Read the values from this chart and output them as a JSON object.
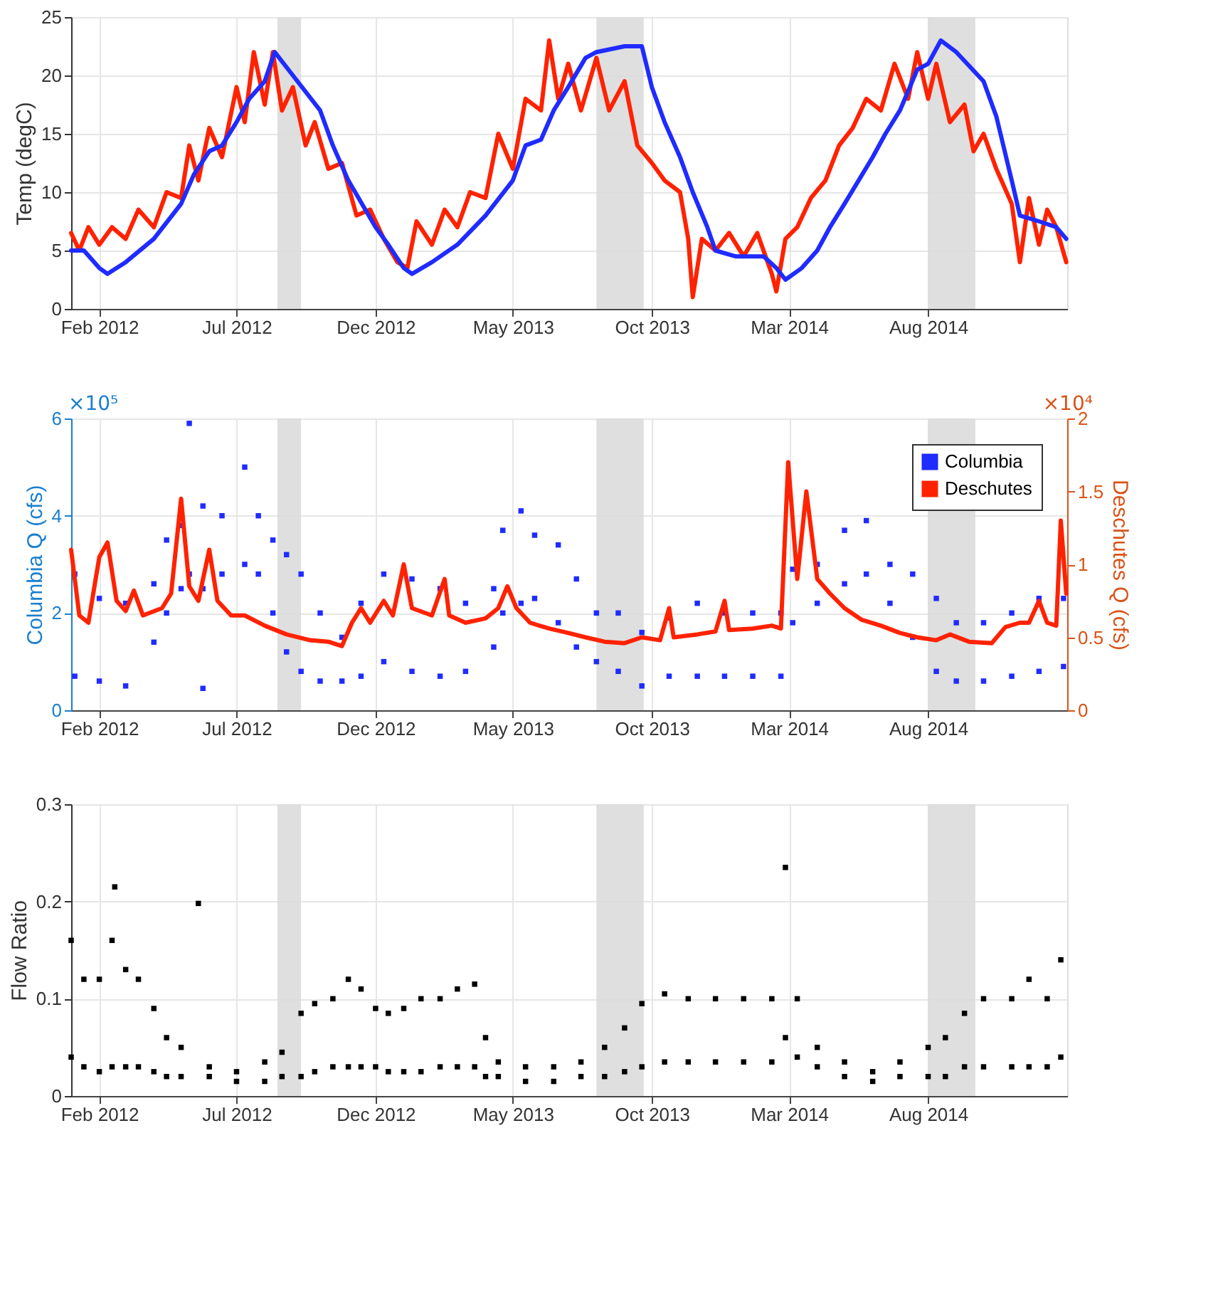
{
  "chart_data": [
    {
      "type": "line",
      "ylabel": "Temp (degC)",
      "xlim": [
        "2012-01-01",
        "2015-01-01"
      ],
      "ylim": [
        0,
        25
      ],
      "yticks": [
        0,
        5,
        10,
        15,
        20,
        25
      ],
      "xticks": [
        {
          "value": "2012-02-01",
          "label": "Feb 2012"
        },
        {
          "value": "2012-07-01",
          "label": "Jul 2012"
        },
        {
          "value": "2012-12-01",
          "label": "Dec 2012"
        },
        {
          "value": "2013-05-01",
          "label": "May 2013"
        },
        {
          "value": "2013-10-01",
          "label": "Oct 2013"
        },
        {
          "value": "2014-03-01",
          "label": "Mar 2014"
        },
        {
          "value": "2014-08-01",
          "label": "Aug 2014"
        }
      ],
      "grid": true,
      "bands": [
        {
          "axis": "x",
          "from": "2012-08-15",
          "to": "2012-09-10",
          "color": "#d9d9d9"
        },
        {
          "axis": "x",
          "from": "2013-08-01",
          "to": "2013-09-22",
          "color": "#d9d9d9"
        },
        {
          "axis": "x",
          "from": "2014-08-01",
          "to": "2014-09-22",
          "color": "#d9d9d9"
        }
      ],
      "series": [
        {
          "color": "#ff2200",
          "x": [
            "2012-01-01",
            "2012-01-10",
            "2012-01-20",
            "2012-02-01",
            "2012-02-15",
            "2012-03-01",
            "2012-03-15",
            "2012-04-01",
            "2012-04-15",
            "2012-05-01",
            "2012-05-10",
            "2012-05-20",
            "2012-06-01",
            "2012-06-15",
            "2012-07-01",
            "2012-07-10",
            "2012-07-20",
            "2012-08-01",
            "2012-08-10",
            "2012-08-20",
            "2012-09-01",
            "2012-09-15",
            "2012-09-25",
            "2012-10-10",
            "2012-10-25",
            "2012-11-10",
            "2012-11-25",
            "2012-12-10",
            "2012-12-25",
            "2013-01-05",
            "2013-01-15",
            "2013-02-01",
            "2013-02-15",
            "2013-03-01",
            "2013-03-15",
            "2013-04-01",
            "2013-04-15",
            "2013-05-01",
            "2013-05-15",
            "2013-06-01",
            "2013-06-10",
            "2013-06-20",
            "2013-07-01",
            "2013-07-15",
            "2013-08-01",
            "2013-08-15",
            "2013-09-01",
            "2013-09-15",
            "2013-10-01",
            "2013-10-15",
            "2013-11-01",
            "2013-11-10",
            "2013-11-15",
            "2013-11-25",
            "2013-12-10",
            "2013-12-25",
            "2014-01-10",
            "2014-01-25",
            "2014-02-10",
            "2014-02-15",
            "2014-02-25",
            "2014-03-10",
            "2014-03-25",
            "2014-04-10",
            "2014-04-25",
            "2014-05-10",
            "2014-05-25",
            "2014-06-10",
            "2014-06-25",
            "2014-07-10",
            "2014-07-20",
            "2014-08-01",
            "2014-08-10",
            "2014-08-25",
            "2014-09-10",
            "2014-09-20",
            "2014-10-01",
            "2014-10-15",
            "2014-11-01",
            "2014-11-10",
            "2014-11-20",
            "2014-12-01",
            "2014-12-10",
            "2014-12-20",
            "2014-12-31"
          ],
          "values": [
            6.5,
            5,
            7,
            5.5,
            7,
            6,
            8.5,
            7,
            10,
            9.5,
            14,
            11,
            15.5,
            13,
            19,
            16,
            22,
            17.5,
            22,
            17,
            19,
            14,
            16,
            12,
            12.5,
            8,
            8.5,
            6,
            4,
            3.5,
            7.5,
            5.5,
            8.5,
            7,
            10,
            9.5,
            15,
            12,
            18,
            17,
            23,
            18,
            21,
            17,
            21.5,
            17,
            19.5,
            14,
            12.5,
            11,
            10,
            6,
            1,
            6,
            5,
            6.5,
            4.5,
            6.5,
            3,
            1.5,
            6,
            7,
            9.5,
            11,
            14,
            15.5,
            18,
            17,
            21,
            18,
            22,
            18,
            21,
            16,
            17.5,
            13.5,
            15,
            12,
            9,
            4,
            9.5,
            5.5,
            8.5,
            7,
            4
          ]
        },
        {
          "color": "#1f2bff",
          "x": [
            "2012-01-01",
            "2012-01-15",
            "2012-02-01",
            "2012-02-10",
            "2012-03-01",
            "2012-04-01",
            "2012-05-01",
            "2012-05-15",
            "2012-06-01",
            "2012-06-15",
            "2012-07-01",
            "2012-07-15",
            "2012-08-01",
            "2012-08-12",
            "2012-09-01",
            "2012-10-01",
            "2012-10-15",
            "2012-11-01",
            "2012-12-01",
            "2012-12-15",
            "2013-01-01",
            "2013-01-10",
            "2013-02-01",
            "2013-03-01",
            "2013-04-01",
            "2013-05-01",
            "2013-05-15",
            "2013-06-01",
            "2013-06-15",
            "2013-07-01",
            "2013-07-20",
            "2013-08-01",
            "2013-09-01",
            "2013-09-20",
            "2013-10-01",
            "2013-10-15",
            "2013-11-01",
            "2013-11-15",
            "2013-12-01",
            "2013-12-10",
            "2014-01-01",
            "2014-02-01",
            "2014-02-15",
            "2014-02-25",
            "2014-03-15",
            "2014-04-01",
            "2014-04-15",
            "2014-05-01",
            "2014-06-01",
            "2014-06-15",
            "2014-07-01",
            "2014-07-20",
            "2014-08-01",
            "2014-08-15",
            "2014-09-01",
            "2014-10-01",
            "2014-10-15",
            "2014-11-01",
            "2014-11-10",
            "2014-12-01",
            "2014-12-20",
            "2014-12-31"
          ],
          "values": [
            5,
            5,
            3.5,
            3,
            4,
            6,
            9,
            11.5,
            13.5,
            14,
            16,
            18,
            19.5,
            22,
            20,
            17,
            14,
            11,
            7,
            5.5,
            3.5,
            3,
            4,
            5.5,
            8,
            11,
            14,
            14.5,
            17,
            19,
            21.5,
            22,
            22.5,
            22.5,
            19,
            16,
            13,
            10,
            7,
            5,
            4.5,
            4.5,
            3.5,
            2.5,
            3.5,
            5,
            7,
            9,
            13,
            15,
            17,
            20.5,
            21,
            23,
            22,
            19.5,
            16.5,
            11,
            8,
            7.5,
            7,
            6
          ]
        }
      ]
    },
    {
      "type": "scatter",
      "ylabel": "Columbia Q (cfs)",
      "y2label": "Deschutes Q (cfs)",
      "xlim": [
        "2012-01-01",
        "2015-01-01"
      ],
      "ylim": [
        0,
        6
      ],
      "yticks": [
        0,
        2,
        4,
        6
      ],
      "y2lim": [
        0,
        2
      ],
      "y2ticks": [
        0,
        0.5,
        1,
        1.5,
        2
      ],
      "xticks": [
        {
          "value": "2012-02-01",
          "label": "Feb 2012"
        },
        {
          "value": "2012-07-01",
          "label": "Jul 2012"
        },
        {
          "value": "2012-12-01",
          "label": "Dec 2012"
        },
        {
          "value": "2013-05-01",
          "label": "May 2013"
        },
        {
          "value": "2013-10-01",
          "label": "Oct 2013"
        },
        {
          "value": "2014-03-01",
          "label": "Mar 2014"
        },
        {
          "value": "2014-08-01",
          "label": "Aug 2014"
        }
      ],
      "grid": true,
      "legend": "top right",
      "marker": "square",
      "annotations": [
        "×10⁵",
        "×10⁴"
      ],
      "bands": [
        {
          "axis": "x",
          "from": "2012-08-15",
          "to": "2012-09-10",
          "color": "#d9d9d9"
        },
        {
          "axis": "x",
          "from": "2013-08-01",
          "to": "2013-09-22",
          "color": "#d9d9d9"
        },
        {
          "axis": "x",
          "from": "2014-08-01",
          "to": "2014-09-22",
          "color": "#d9d9d9"
        }
      ],
      "series": [
        {
          "name": "Columbia",
          "color": "#1f2bff",
          "x": [
            "2012-01-05",
            "2012-01-05",
            "2012-02-01",
            "2012-02-01",
            "2012-03-01",
            "2012-03-01",
            "2012-04-01",
            "2012-04-01",
            "2012-04-15",
            "2012-04-15",
            "2012-05-01",
            "2012-05-01",
            "2012-05-10",
            "2012-05-10",
            "2012-05-25",
            "2012-05-25",
            "2012-05-25",
            "2012-06-15",
            "2012-06-15",
            "2012-07-10",
            "2012-07-10",
            "2012-07-25",
            "2012-07-25",
            "2012-08-10",
            "2012-08-10",
            "2012-08-25",
            "2012-08-25",
            "2012-09-10",
            "2012-09-10",
            "2012-10-01",
            "2012-10-01",
            "2012-10-25",
            "2012-10-25",
            "2012-11-15",
            "2012-11-15",
            "2012-12-10",
            "2012-12-10",
            "2013-01-10",
            "2013-01-10",
            "2013-02-10",
            "2013-02-10",
            "2013-03-10",
            "2013-03-10",
            "2013-04-10",
            "2013-04-10",
            "2013-04-20",
            "2013-04-20",
            "2013-05-10",
            "2013-05-10",
            "2013-05-25",
            "2013-05-25",
            "2013-06-20",
            "2013-06-20",
            "2013-07-10",
            "2013-07-10",
            "2013-08-01",
            "2013-08-01",
            "2013-08-25",
            "2013-08-25",
            "2013-09-20",
            "2013-09-20",
            "2013-10-20",
            "2013-10-20",
            "2013-11-20",
            "2013-11-20",
            "2013-12-20",
            "2013-12-20",
            "2014-01-20",
            "2014-01-20",
            "2014-02-20",
            "2014-02-20",
            "2014-03-05",
            "2014-03-05",
            "2014-04-01",
            "2014-04-01",
            "2014-05-01",
            "2014-05-01",
            "2014-05-25",
            "2014-05-25",
            "2014-06-20",
            "2014-06-20",
            "2014-07-15",
            "2014-07-15",
            "2014-08-10",
            "2014-08-10",
            "2014-09-01",
            "2014-09-01",
            "2014-10-01",
            "2014-10-01",
            "2014-11-01",
            "2014-11-01",
            "2014-12-01",
            "2014-12-01",
            "2014-12-28",
            "2014-12-28"
          ],
          "values": [
            2.8,
            0.7,
            2.3,
            0.6,
            2.2,
            0.5,
            2.6,
            1.4,
            3.5,
            2.0,
            3.8,
            2.5,
            5.9,
            2.8,
            4.2,
            2.5,
            0.45,
            4.0,
            2.8,
            5.0,
            3.0,
            4.0,
            2.8,
            3.5,
            2.0,
            3.2,
            1.2,
            2.8,
            0.8,
            2.0,
            0.6,
            1.5,
            0.6,
            2.2,
            0.7,
            2.8,
            1.0,
            2.7,
            0.8,
            2.5,
            0.7,
            2.2,
            0.8,
            2.5,
            1.3,
            3.7,
            2.0,
            4.1,
            2.2,
            3.6,
            2.3,
            3.4,
            1.8,
            2.7,
            1.3,
            2.0,
            1.0,
            2.0,
            0.8,
            1.6,
            0.5,
            1.9,
            0.7,
            2.2,
            0.7,
            2.0,
            0.7,
            2.0,
            0.7,
            2.0,
            0.7,
            2.9,
            1.8,
            3.0,
            2.2,
            3.7,
            2.6,
            3.9,
            2.8,
            3.0,
            2.2,
            2.8,
            1.5,
            2.3,
            0.8,
            1.8,
            0.6,
            1.8,
            0.6,
            2.0,
            0.7,
            2.3,
            0.8,
            2.3,
            0.9
          ]
        },
        {
          "name": "Deschutes",
          "color": "#ff2200",
          "type": "line",
          "axis": "y2",
          "marker": "none",
          "x": [
            "2012-01-01",
            "2012-01-10",
            "2012-01-20",
            "2012-02-01",
            "2012-02-10",
            "2012-02-20",
            "2012-03-01",
            "2012-03-10",
            "2012-03-20",
            "2012-04-10",
            "2012-04-20",
            "2012-05-01",
            "2012-05-10",
            "2012-05-20",
            "2012-06-01",
            "2012-06-10",
            "2012-06-25",
            "2012-07-10",
            "2012-08-01",
            "2012-08-25",
            "2012-09-20",
            "2012-10-10",
            "2012-10-25",
            "2012-11-05",
            "2012-11-15",
            "2012-11-25",
            "2012-12-10",
            "2012-12-20",
            "2013-01-01",
            "2013-01-10",
            "2013-02-01",
            "2013-02-15",
            "2013-02-20",
            "2013-03-10",
            "2013-04-01",
            "2013-04-15",
            "2013-04-25",
            "2013-05-05",
            "2013-05-20",
            "2013-06-10",
            "2013-07-01",
            "2013-07-20",
            "2013-08-10",
            "2013-09-01",
            "2013-09-20",
            "2013-10-10",
            "2013-10-20",
            "2013-10-25",
            "2013-11-20",
            "2013-12-10",
            "2013-12-20",
            "2013-12-25",
            "2014-01-20",
            "2014-02-10",
            "2014-02-20",
            "2014-02-28",
            "2014-03-10",
            "2014-03-20",
            "2014-04-01",
            "2014-04-15",
            "2014-05-01",
            "2014-05-20",
            "2014-06-10",
            "2014-07-01",
            "2014-07-20",
            "2014-08-10",
            "2014-08-25",
            "2014-09-15",
            "2014-10-10",
            "2014-10-25",
            "2014-11-10",
            "2014-11-20",
            "2014-12-01",
            "2014-12-10",
            "2014-12-20",
            "2014-12-25",
            "2014-12-31"
          ],
          "values": [
            1.1,
            0.65,
            0.6,
            1.05,
            1.15,
            0.75,
            0.68,
            0.82,
            0.65,
            0.7,
            0.8,
            1.45,
            0.85,
            0.75,
            1.1,
            0.75,
            0.65,
            0.65,
            0.58,
            0.52,
            0.48,
            0.47,
            0.44,
            0.6,
            0.7,
            0.6,
            0.75,
            0.65,
            1.0,
            0.7,
            0.65,
            0.9,
            0.65,
            0.6,
            0.63,
            0.7,
            0.85,
            0.7,
            0.6,
            0.56,
            0.53,
            0.5,
            0.47,
            0.46,
            0.5,
            0.48,
            0.7,
            0.5,
            0.52,
            0.54,
            0.75,
            0.55,
            0.56,
            0.58,
            0.56,
            1.7,
            0.9,
            1.5,
            0.9,
            0.8,
            0.7,
            0.62,
            0.58,
            0.53,
            0.5,
            0.48,
            0.52,
            0.47,
            0.46,
            0.57,
            0.6,
            0.6,
            0.75,
            0.6,
            0.58,
            1.3,
            0.8
          ]
        }
      ]
    },
    {
      "type": "scatter",
      "ylabel": "Flow Ratio",
      "xlim": [
        "2012-01-01",
        "2015-01-01"
      ],
      "ylim": [
        0,
        0.3
      ],
      "yticks": [
        0,
        0.1,
        0.2,
        0.3
      ],
      "xticks": [
        {
          "value": "2012-02-01",
          "label": "Feb 2012"
        },
        {
          "value": "2012-07-01",
          "label": "Jul 2012"
        },
        {
          "value": "2012-12-01",
          "label": "Dec 2012"
        },
        {
          "value": "2013-05-01",
          "label": "May 2013"
        },
        {
          "value": "2013-10-01",
          "label": "Oct 2013"
        },
        {
          "value": "2014-03-01",
          "label": "Mar 2014"
        },
        {
          "value": "2014-08-01",
          "label": "Aug 2014"
        }
      ],
      "grid": true,
      "marker": "square",
      "bands": [
        {
          "axis": "x",
          "from": "2012-08-15",
          "to": "2012-09-10",
          "color": "#d9d9d9"
        },
        {
          "axis": "x",
          "from": "2013-08-01",
          "to": "2013-09-22",
          "color": "#d9d9d9"
        },
        {
          "axis": "x",
          "from": "2014-08-01",
          "to": "2014-09-22",
          "color": "#d9d9d9"
        }
      ],
      "series": [
        {
          "color": "#000000",
          "x": [
            "2012-01-01",
            "2012-01-01",
            "2012-01-15",
            "2012-01-15",
            "2012-02-01",
            "2012-02-01",
            "2012-02-15",
            "2012-02-15",
            "2012-02-18",
            "2012-03-01",
            "2012-03-01",
            "2012-03-15",
            "2012-03-15",
            "2012-04-01",
            "2012-04-01",
            "2012-04-15",
            "2012-04-15",
            "2012-05-01",
            "2012-05-01",
            "2012-05-20",
            "2012-06-01",
            "2012-06-01",
            "2012-07-01",
            "2012-07-01",
            "2012-08-01",
            "2012-08-01",
            "2012-08-20",
            "2012-08-20",
            "2012-09-10",
            "2012-09-10",
            "2012-09-25",
            "2012-09-25",
            "2012-10-15",
            "2012-10-15",
            "2012-11-01",
            "2012-11-01",
            "2012-11-15",
            "2012-11-15",
            "2012-12-01",
            "2012-12-01",
            "2012-12-15",
            "2012-12-15",
            "2013-01-01",
            "2013-01-01",
            "2013-01-20",
            "2013-01-20",
            "2013-02-10",
            "2013-02-10",
            "2013-03-01",
            "2013-03-01",
            "2013-03-20",
            "2013-03-20",
            "2013-04-01",
            "2013-04-01",
            "2013-04-15",
            "2013-04-15",
            "2013-05-15",
            "2013-05-15",
            "2013-06-15",
            "2013-06-15",
            "2013-07-15",
            "2013-07-15",
            "2013-08-10",
            "2013-08-10",
            "2013-09-01",
            "2013-09-01",
            "2013-09-20",
            "2013-09-20",
            "2013-10-15",
            "2013-10-15",
            "2013-11-10",
            "2013-11-10",
            "2013-12-10",
            "2013-12-10",
            "2014-01-10",
            "2014-01-10",
            "2014-02-10",
            "2014-02-10",
            "2014-02-25",
            "2014-02-25",
            "2014-03-10",
            "2014-03-10",
            "2014-04-01",
            "2014-04-01",
            "2014-05-01",
            "2014-05-01",
            "2014-06-01",
            "2014-06-01",
            "2014-07-01",
            "2014-07-01",
            "2014-08-01",
            "2014-08-01",
            "2014-08-20",
            "2014-08-20",
            "2014-09-10",
            "2014-09-10",
            "2014-10-01",
            "2014-10-01",
            "2014-11-01",
            "2014-11-01",
            "2014-11-20",
            "2014-11-20",
            "2014-12-10",
            "2014-12-10",
            "2014-12-25",
            "2014-12-25"
          ],
          "values": [
            0.16,
            0.04,
            0.12,
            0.03,
            0.12,
            0.025,
            0.16,
            0.03,
            0.215,
            0.13,
            0.03,
            0.12,
            0.03,
            0.09,
            0.025,
            0.06,
            0.02,
            0.05,
            0.02,
            0.198,
            0.03,
            0.02,
            0.025,
            0.015,
            0.035,
            0.015,
            0.045,
            0.02,
            0.085,
            0.02,
            0.095,
            0.025,
            0.1,
            0.03,
            0.12,
            0.03,
            0.11,
            0.03,
            0.09,
            0.03,
            0.085,
            0.025,
            0.09,
            0.025,
            0.1,
            0.025,
            0.1,
            0.03,
            0.11,
            0.03,
            0.115,
            0.03,
            0.06,
            0.02,
            0.035,
            0.02,
            0.03,
            0.015,
            0.03,
            0.015,
            0.035,
            0.02,
            0.05,
            0.02,
            0.07,
            0.025,
            0.095,
            0.03,
            0.105,
            0.035,
            0.1,
            0.035,
            0.1,
            0.035,
            0.1,
            0.035,
            0.1,
            0.035,
            0.235,
            0.06,
            0.1,
            0.04,
            0.05,
            0.03,
            0.035,
            0.02,
            0.025,
            0.015,
            0.035,
            0.02,
            0.05,
            0.02,
            0.06,
            0.02,
            0.085,
            0.03,
            0.1,
            0.03,
            0.1,
            0.03,
            0.12,
            0.03,
            0.1,
            0.03,
            0.14,
            0.04
          ]
        }
      ]
    }
  ]
}
